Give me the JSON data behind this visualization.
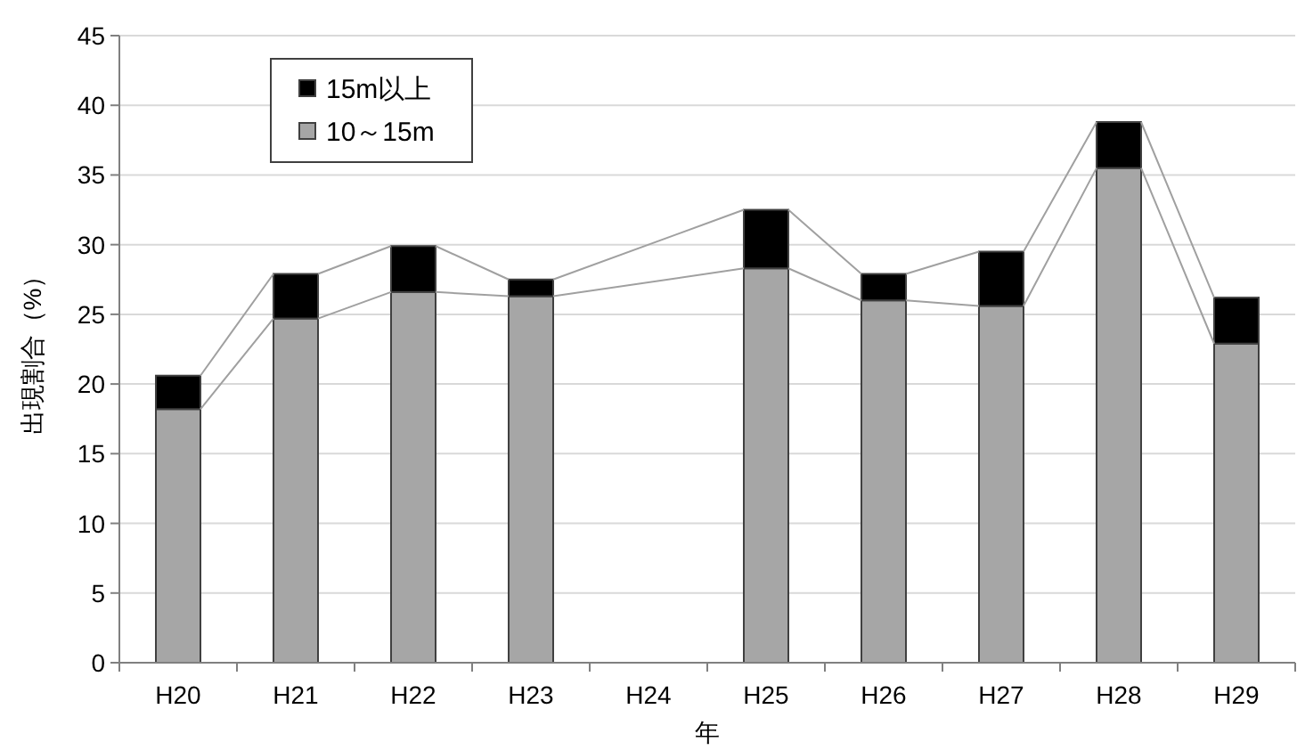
{
  "chart_data": {
    "type": "bar",
    "stacked": true,
    "xlabel": "年",
    "ylabel": "出現割合（%）",
    "categories": [
      "H20",
      "H21",
      "H22",
      "H23",
      "H24",
      "H25",
      "H26",
      "H27",
      "H28",
      "H29"
    ],
    "series": [
      {
        "name": "10～15m",
        "color": "#a6a6a6",
        "values": [
          18.2,
          24.7,
          26.6,
          26.3,
          null,
          28.3,
          26.0,
          25.6,
          35.5,
          22.9
        ]
      },
      {
        "name": "15m以上",
        "color": "#000000",
        "values": [
          2.4,
          3.2,
          3.3,
          1.2,
          null,
          4.2,
          1.9,
          3.9,
          3.3,
          3.3
        ]
      }
    ],
    "ylim": [
      0,
      45
    ],
    "yticks": [
      0,
      5,
      10,
      15,
      20,
      25,
      30,
      35,
      40,
      45
    ],
    "grid": "y",
    "legend": "top left"
  }
}
